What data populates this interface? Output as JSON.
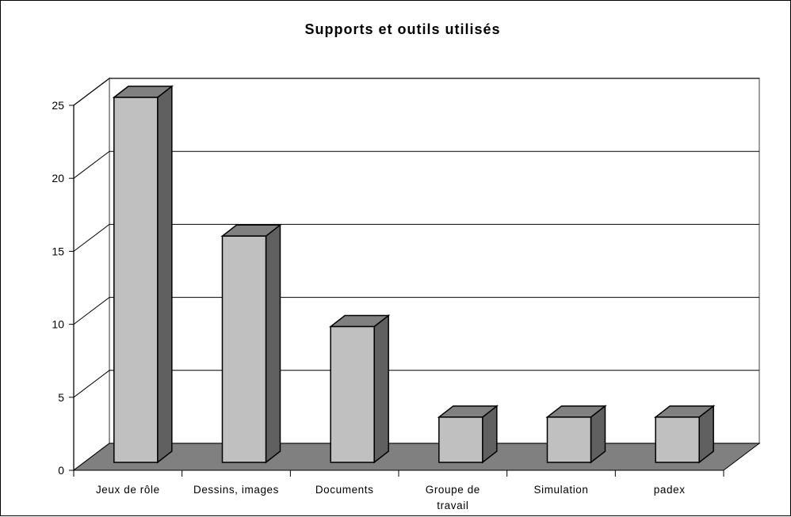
{
  "chart_data": {
    "type": "bar",
    "title": "Supports et outils utilisés",
    "categories": [
      [
        "Jeux de rôle"
      ],
      [
        "Dessins, images"
      ],
      [
        "Documents"
      ],
      [
        "Groupe de",
        "travail"
      ],
      [
        "Simulation"
      ],
      [
        "padex"
      ]
    ],
    "values": [
      25,
      15.5,
      9.3,
      3.1,
      3.1,
      3.1
    ],
    "ylim": [
      0,
      25
    ],
    "yticks": [
      0,
      5,
      10,
      15,
      20,
      25
    ],
    "grid": true,
    "legend": "none",
    "style": "3d-column",
    "colors": {
      "bar_front": "#C0C0C0",
      "bar_side": "#606060",
      "bar_top": "#808080",
      "floor": "#808080",
      "wall": "#ffffff",
      "grid": "#000000"
    }
  }
}
